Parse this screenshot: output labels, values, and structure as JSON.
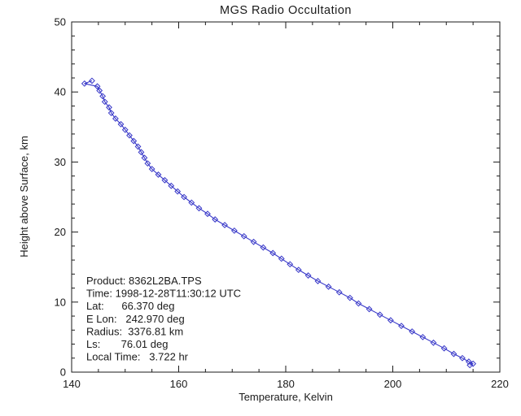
{
  "chart_data": {
    "type": "line",
    "title": "MGS Radio Occultation",
    "xlabel": "Temperature, Kelvin",
    "ylabel": "Height above Surface, km",
    "xlim": [
      140,
      220
    ],
    "ylim": [
      0,
      50
    ],
    "x_major_ticks": [
      140,
      160,
      180,
      200,
      220
    ],
    "y_major_ticks": [
      0,
      10,
      20,
      30,
      40,
      50
    ],
    "x_minor_step": 5,
    "y_minor_step": 2,
    "grid": false,
    "legend": "none",
    "marker": "diamond",
    "line_color": "#3737c8",
    "text_color": "#1a1a1a",
    "annotation_lines": [
      "Product: 8362L2BA.TPS",
      "Time: 1998-12-28T11:30:12 UTC",
      "Lat:      66.370 deg",
      "E Lon:   242.970 deg",
      "Radius:  3376.81 km",
      "Ls:       76.01 deg",
      "Local Time:   3.722 hr"
    ],
    "series": [
      {
        "name": "temperature profile",
        "x": [
          143.8,
          142.4,
          144.8,
          145.2,
          145.8,
          146.2,
          147.0,
          147.4,
          148.2,
          149.2,
          150.0,
          150.8,
          151.6,
          152.4,
          153.0,
          153.6,
          154.2,
          155.0,
          156.2,
          157.4,
          158.6,
          159.8,
          161.0,
          162.4,
          163.8,
          165.4,
          166.8,
          168.6,
          170.4,
          172.2,
          174.0,
          175.8,
          177.6,
          179.2,
          180.8,
          182.4,
          184.2,
          186.0,
          188.0,
          190.0,
          192.0,
          193.6,
          195.6,
          197.6,
          199.6,
          201.6,
          203.6,
          205.6,
          207.6,
          209.6,
          211.4,
          213.0,
          214.2,
          215.0,
          214.4
        ],
        "y": [
          41.6,
          41.2,
          40.8,
          40.2,
          39.4,
          38.6,
          37.8,
          37.0,
          36.2,
          35.4,
          34.6,
          33.8,
          33.0,
          32.2,
          31.4,
          30.6,
          29.8,
          29.0,
          28.2,
          27.4,
          26.6,
          25.8,
          25.0,
          24.2,
          23.4,
          22.6,
          21.8,
          21.0,
          20.2,
          19.4,
          18.6,
          17.8,
          17.0,
          16.2,
          15.4,
          14.6,
          13.8,
          13.0,
          12.2,
          11.4,
          10.6,
          9.8,
          9.0,
          8.2,
          7.4,
          6.6,
          5.8,
          5.0,
          4.2,
          3.4,
          2.6,
          2.0,
          1.5,
          1.2,
          1.0
        ]
      }
    ]
  }
}
